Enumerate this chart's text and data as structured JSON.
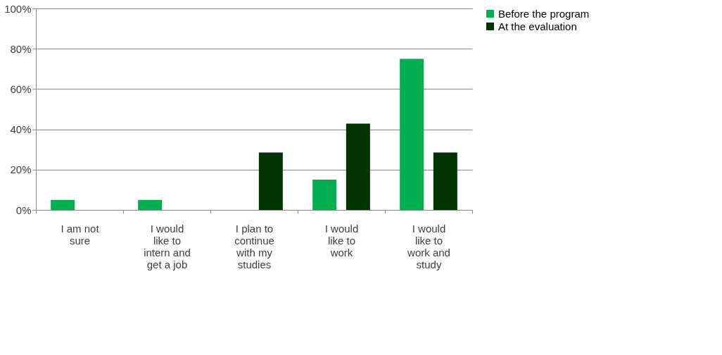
{
  "chart_data": {
    "type": "bar",
    "categories": [
      "I am not sure",
      "I would like to intern and get a job",
      "I plan to continue with my studies",
      "I would like to work",
      "I would like to work and study"
    ],
    "series": [
      {
        "name": "Before the program",
        "color": "#00b050",
        "values": [
          5,
          5,
          0,
          15,
          75
        ]
      },
      {
        "name": "At the evaluation",
        "color": "#003300",
        "values": [
          0,
          0,
          28.5,
          42.8,
          28.5
        ]
      }
    ],
    "ylim": [
      0,
      100
    ],
    "yticks": [
      {
        "value": 0,
        "label": "0%"
      },
      {
        "value": 20,
        "label": "20%"
      },
      {
        "value": 40,
        "label": "40%"
      },
      {
        "value": 60,
        "label": "60%"
      },
      {
        "value": 80,
        "label": "80%"
      },
      {
        "value": 100,
        "label": "100%"
      }
    ],
    "grid": "y",
    "legend": "right"
  }
}
